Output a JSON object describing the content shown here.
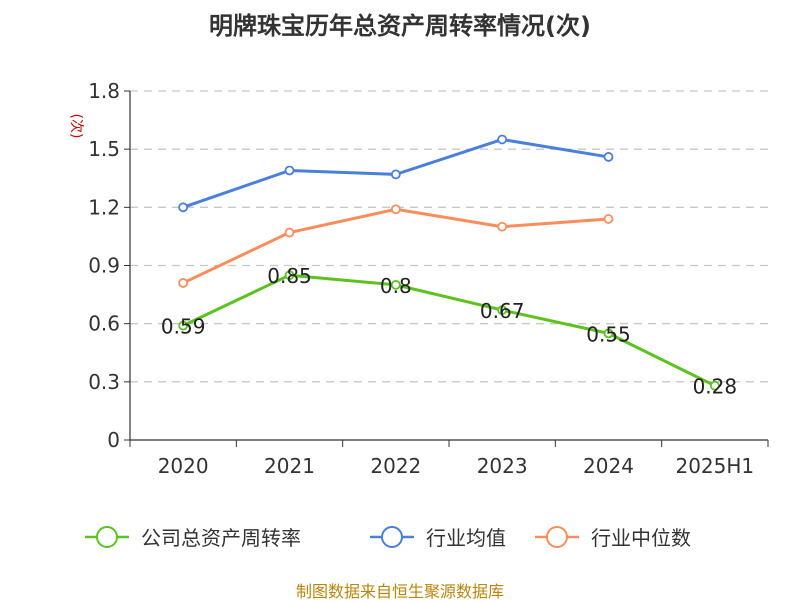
{
  "chart_data": {
    "type": "line",
    "title": "明牌珠宝历年总资产周转率情况(次)",
    "ylabel": "(次)",
    "categories": [
      "2020",
      "2021",
      "2022",
      "2023",
      "2024",
      "2025H1"
    ],
    "ylim": [
      0,
      1.8
    ],
    "yticks": [
      "0",
      "0.3",
      "0.6",
      "0.9",
      "1.2",
      "1.5",
      "1.8"
    ],
    "grid": true,
    "legend_position": "bottom",
    "series": [
      {
        "name": "公司总资产周转率",
        "color": "#5cc21f",
        "values": [
          0.59,
          0.85,
          0.8,
          0.67,
          0.55,
          0.28
        ],
        "labels": [
          "0.59",
          "0.85",
          "0.8",
          "0.67",
          "0.55",
          "0.28"
        ]
      },
      {
        "name": "行业均值",
        "color": "#4a7fdc",
        "values": [
          1.2,
          1.39,
          1.37,
          1.55,
          1.46,
          null
        ]
      },
      {
        "name": "行业中位数",
        "color": "#f98d5b",
        "values": [
          0.81,
          1.07,
          1.19,
          1.1,
          1.14,
          null
        ]
      }
    ]
  },
  "source": "制图数据来自恒生聚源数据库"
}
